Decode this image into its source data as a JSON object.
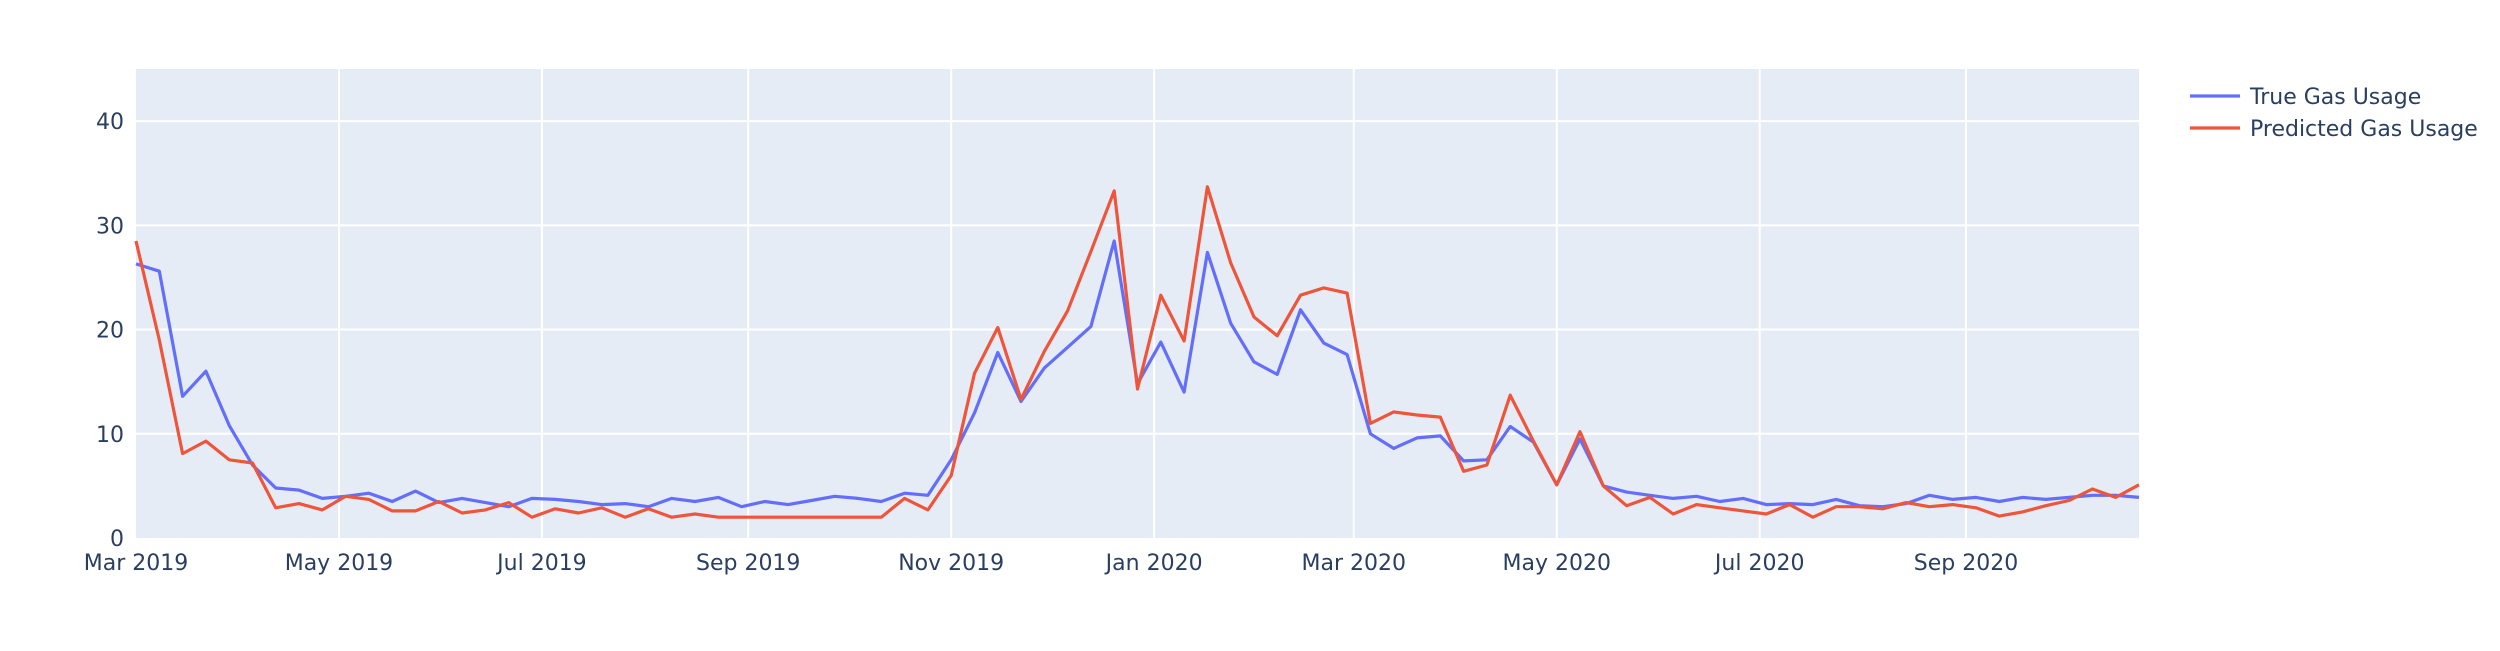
{
  "chart_data": {
    "type": "line",
    "title": "",
    "xlabel": "",
    "ylabel": "",
    "ylim": [
      0,
      45
    ],
    "yticks": [
      0,
      10,
      20,
      30,
      40
    ],
    "xticks": [
      {
        "date": "2019-03-01",
        "label": "Mar 2019"
      },
      {
        "date": "2019-05-01",
        "label": "May 2019"
      },
      {
        "date": "2019-07-01",
        "label": "Jul 2019"
      },
      {
        "date": "2019-09-01",
        "label": "Sep 2019"
      },
      {
        "date": "2019-11-01",
        "label": "Nov 2019"
      },
      {
        "date": "2020-01-01",
        "label": "Jan 2020"
      },
      {
        "date": "2020-03-01",
        "label": "Mar 2020"
      },
      {
        "date": "2020-05-01",
        "label": "May 2020"
      },
      {
        "date": "2020-07-01",
        "label": "Jul 2020"
      },
      {
        "date": "2020-09-01",
        "label": "Sep 2020"
      }
    ],
    "grid": true,
    "legend_position": "top-right outside",
    "plot_background": "#E5ECF6",
    "x": [
      "2019-03-01",
      "2019-03-08",
      "2019-03-15",
      "2019-03-22",
      "2019-03-29",
      "2019-04-05",
      "2019-04-12",
      "2019-04-19",
      "2019-04-26",
      "2019-05-03",
      "2019-05-10",
      "2019-05-17",
      "2019-05-24",
      "2019-05-31",
      "2019-06-07",
      "2019-06-14",
      "2019-06-21",
      "2019-06-28",
      "2019-07-05",
      "2019-07-12",
      "2019-07-19",
      "2019-07-26",
      "2019-08-02",
      "2019-08-09",
      "2019-08-16",
      "2019-08-23",
      "2019-08-30",
      "2019-09-06",
      "2019-09-13",
      "2019-09-20",
      "2019-09-27",
      "2019-10-04",
      "2019-10-11",
      "2019-10-18",
      "2019-10-25",
      "2019-11-01",
      "2019-11-08",
      "2019-11-15",
      "2019-11-22",
      "2019-11-29",
      "2019-12-06",
      "2019-12-13",
      "2019-12-20",
      "2019-12-27",
      "2020-01-03",
      "2020-01-10",
      "2020-01-17",
      "2020-01-24",
      "2020-01-31",
      "2020-02-07",
      "2020-02-14",
      "2020-02-21",
      "2020-02-28",
      "2020-03-06",
      "2020-03-13",
      "2020-03-20",
      "2020-03-27",
      "2020-04-03",
      "2020-04-10",
      "2020-04-17",
      "2020-04-24",
      "2020-05-01",
      "2020-05-08",
      "2020-05-15",
      "2020-05-22",
      "2020-05-29",
      "2020-06-05",
      "2020-06-12",
      "2020-06-19",
      "2020-06-26",
      "2020-07-03",
      "2020-07-10",
      "2020-07-17",
      "2020-07-24",
      "2020-07-31",
      "2020-08-07",
      "2020-08-14",
      "2020-08-21",
      "2020-08-28",
      "2020-09-04",
      "2020-09-11",
      "2020-09-18",
      "2020-09-25",
      "2020-10-02",
      "2020-10-09",
      "2020-10-16",
      "2020-10-23"
    ],
    "series": [
      {
        "name": "True Gas Usage",
        "color": "#636EFA",
        "values": [
          26.3,
          25.6,
          13.6,
          16,
          10.8,
          7,
          4.8,
          4.6,
          3.8,
          4,
          4.3,
          3.5,
          4.5,
          3.4,
          3.8,
          3.4,
          3.0,
          3.8,
          3.7,
          3.5,
          3.2,
          3.3,
          3.0,
          3.8,
          3.5,
          3.9,
          3.0,
          3.5,
          3.2,
          3.6,
          4.0,
          3.8,
          3.5,
          4.3,
          4.1,
          7.5,
          12,
          17.8,
          13.1,
          16.3,
          18.3,
          20.3,
          28.5,
          14.8,
          18.8,
          14,
          27.4,
          20.6,
          16.9,
          15.7,
          21.9,
          18.7,
          17.6,
          10,
          8.6,
          9.6,
          9.8,
          7.4,
          7.5,
          10.7,
          9.2,
          5.1,
          9.5,
          5,
          4.4,
          4.1,
          3.8,
          4,
          3.5,
          3.8,
          3.2,
          3.3,
          3.2,
          3.7,
          3.1,
          3.0,
          3.3,
          4.1,
          3.7,
          3.9,
          3.5,
          3.9,
          3.7,
          3.9,
          4.1,
          4.1,
          3.9
        ]
      },
      {
        "name": "Predicted Gas Usage",
        "color": "#EF553B",
        "values": [
          28.5,
          19,
          8.1,
          9.3,
          7.5,
          7.2,
          2.9,
          3.3,
          2.7,
          4.0,
          3.7,
          2.6,
          2.6,
          3.5,
          2.4,
          2.7,
          3.4,
          2.0,
          2.8,
          2.4,
          2.9,
          2.0,
          2.8,
          2.0,
          2.3,
          2.0,
          2.0,
          2.0,
          2.0,
          2.0,
          2.0,
          2.0,
          2.0,
          3.8,
          2.7,
          6,
          15.8,
          20.2,
          13.3,
          17.9,
          21.8,
          27.5,
          33.3,
          14.3,
          23.3,
          18.9,
          33.7,
          26.4,
          21.2,
          19.4,
          23.3,
          24,
          23.5,
          11,
          12.1,
          11.8,
          11.6,
          6.4,
          7.0,
          13.7,
          9.3,
          5.1,
          10.2,
          5.0,
          3.1,
          3.9,
          2.3,
          3.2,
          2.9,
          2.6,
          2.3,
          3.2,
          2.0,
          3.0,
          3.0,
          2.8,
          3.4,
          3.0,
          3.2,
          2.9,
          2.1,
          2.5,
          3.1,
          3.6,
          4.7,
          3.9,
          5.1
        ]
      }
    ]
  }
}
